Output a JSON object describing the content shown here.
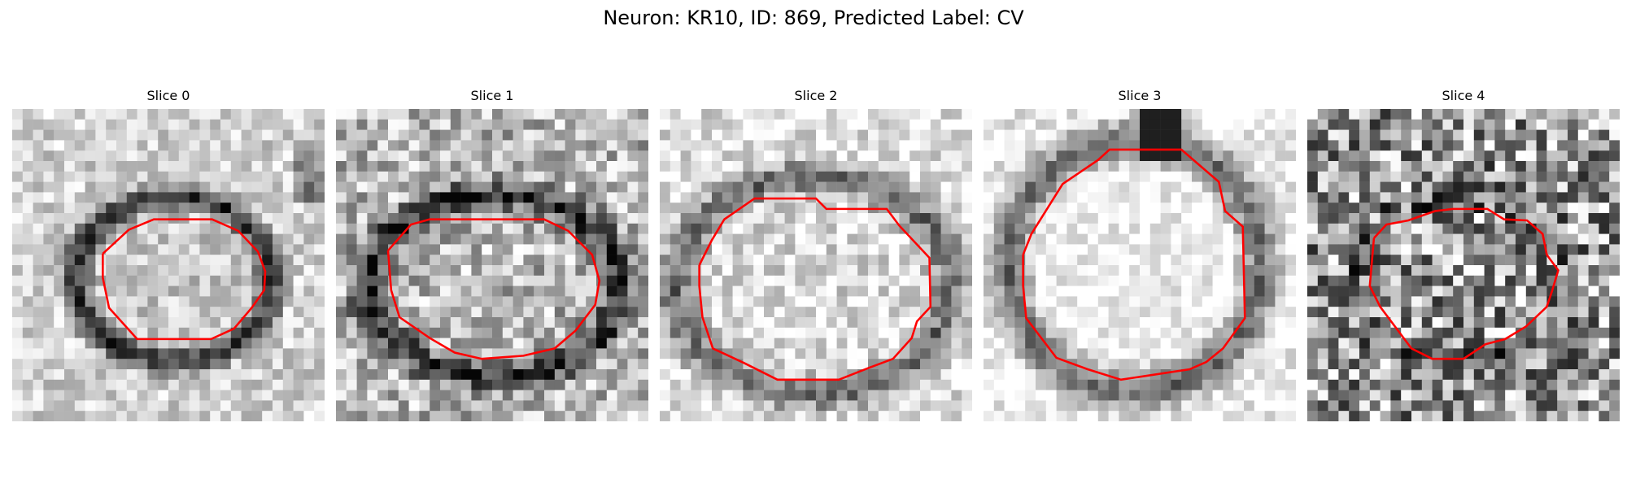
{
  "figure": {
    "title": "Neuron: KR10, ID: 869, Predicted Label: CV"
  },
  "panels": [
    {
      "title": "Slice 0"
    },
    {
      "title": "Slice 1"
    },
    {
      "title": "Slice 2"
    },
    {
      "title": "Slice 3"
    },
    {
      "title": "Slice 4"
    }
  ],
  "colors": {
    "contour": "#ff0000",
    "colormap": "gray (inverted)"
  }
}
